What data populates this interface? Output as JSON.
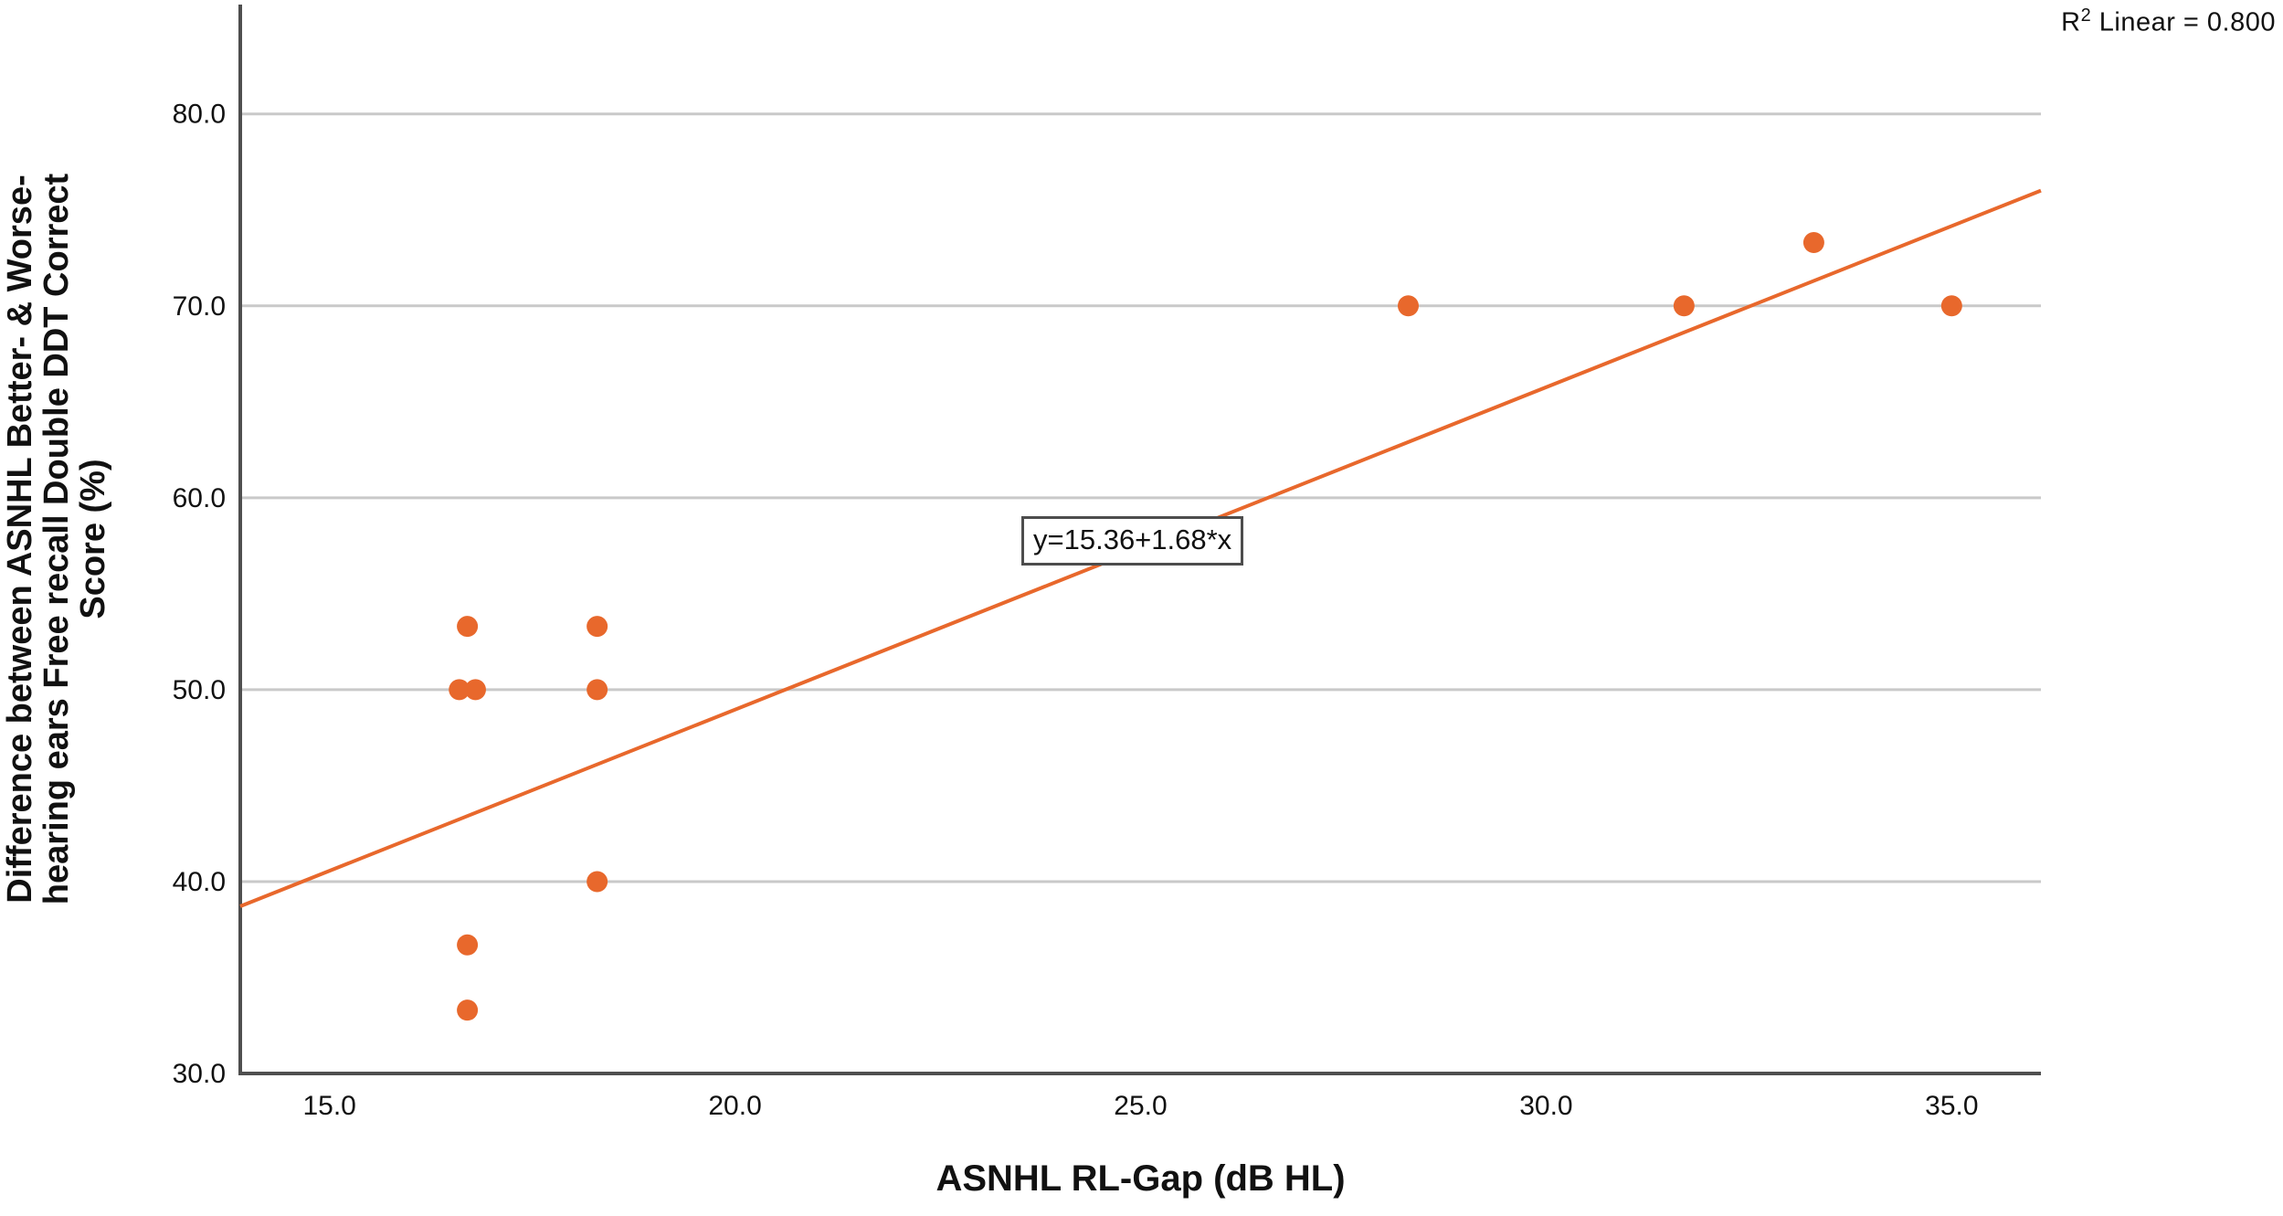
{
  "figure": {
    "r2_label": {
      "prefix": "R",
      "sup": "2",
      "rest": " Linear = 0.800"
    },
    "equation_label": "y=15.36+1.68*x",
    "x_axis_title": "ASNHL RL-Gap (dB HL)",
    "y_axis_title_lines": [
      "Difference between ASNHL Better- & Worse-",
      "hearing ears Free recall Double DDT Correct",
      "Score (%)"
    ]
  },
  "chart_data": {
    "type": "scatter",
    "title": "",
    "xlabel": "ASNHL RL-Gap (dB HL)",
    "ylabel": "Difference between ASNHL Better- & Worse-hearing ears Free recall Double DDT Correct Score (%)",
    "points": [
      {
        "x": 16.7,
        "y": 53.3
      },
      {
        "x": 18.3,
        "y": 53.3
      },
      {
        "x": 16.6,
        "y": 50.0
      },
      {
        "x": 16.8,
        "y": 50.0
      },
      {
        "x": 18.3,
        "y": 50.0
      },
      {
        "x": 18.3,
        "y": 40.0
      },
      {
        "x": 16.7,
        "y": 36.7
      },
      {
        "x": 16.7,
        "y": 33.3
      },
      {
        "x": 28.3,
        "y": 70.0
      },
      {
        "x": 31.7,
        "y": 70.0
      },
      {
        "x": 33.3,
        "y": 73.3
      },
      {
        "x": 35.0,
        "y": 70.0
      }
    ],
    "regression": {
      "equation": "y=15.36+1.68*x",
      "intercept": 15.36,
      "slope": 1.68,
      "r2": 0.8,
      "r2_label": "R² Linear = 0.800"
    },
    "x_ticks": [
      15.0,
      20.0,
      25.0,
      30.0,
      35.0
    ],
    "y_ticks": [
      30.0,
      40.0,
      50.0,
      60.0,
      70.0,
      80.0
    ],
    "xlim": [
      13.9,
      36.1
    ],
    "ylim": [
      30.0,
      85.7
    ],
    "grid": "horizontal",
    "legend": "none",
    "colors": {
      "point": "#E8682C",
      "line": "#E8682C",
      "grid": "#C9C9C9",
      "axis": "#4F4F4F",
      "text": "#111111"
    }
  }
}
